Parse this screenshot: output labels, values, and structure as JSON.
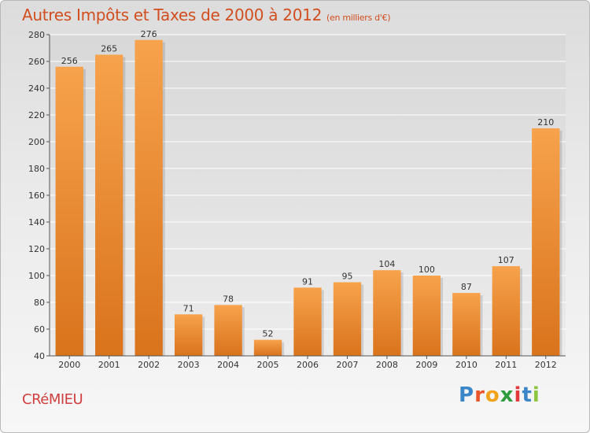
{
  "header": {
    "title": "Autres Impôts et Taxes de 2000 à 2012",
    "unit": "(en milliers d'€)"
  },
  "footer": {
    "commune": "CRéMIEU",
    "logo_letters": [
      {
        "ch": "P",
        "color": "#3a86c8"
      },
      {
        "ch": "r",
        "color": "#e8562a"
      },
      {
        "ch": "o",
        "color": "#f1a31b"
      },
      {
        "ch": "x",
        "color": "#2f9c3e"
      },
      {
        "ch": "i",
        "color": "#e23a3a"
      },
      {
        "ch": "t",
        "color": "#3a86c8"
      },
      {
        "ch": "i",
        "color": "#8cc63f"
      }
    ]
  },
  "chart_data": {
    "type": "bar",
    "categories": [
      "2000",
      "2001",
      "2002",
      "2003",
      "2004",
      "2005",
      "2006",
      "2007",
      "2008",
      "2009",
      "2010",
      "2011",
      "2012"
    ],
    "values": [
      256,
      265,
      276,
      71,
      78,
      52,
      91,
      95,
      104,
      100,
      87,
      107,
      210
    ],
    "ylim": [
      40,
      280
    ],
    "yticks": [
      40,
      60,
      80,
      100,
      120,
      140,
      160,
      180,
      200,
      220,
      240,
      260,
      280
    ],
    "grid": true,
    "bar_color_top": "#f7a24c",
    "bar_color_bottom": "#d9731c"
  }
}
